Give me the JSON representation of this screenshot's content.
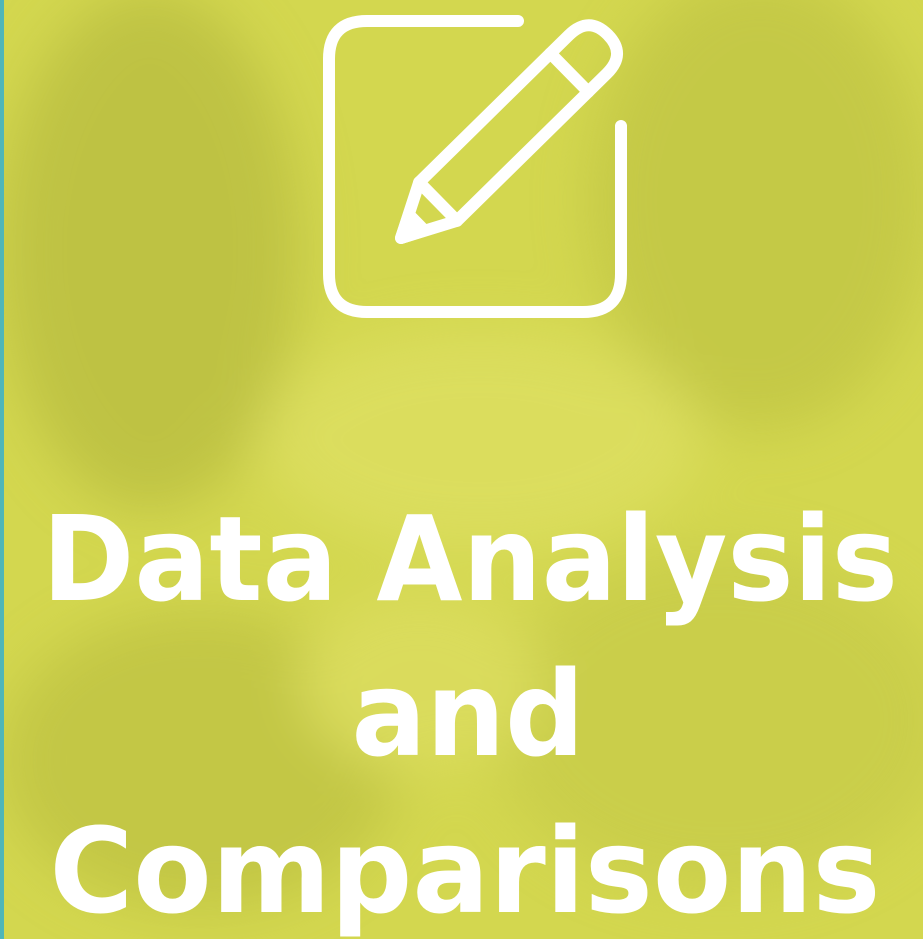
{
  "title_lines": [
    "Data Analysis",
    "and",
    "Comparisons"
  ]
}
